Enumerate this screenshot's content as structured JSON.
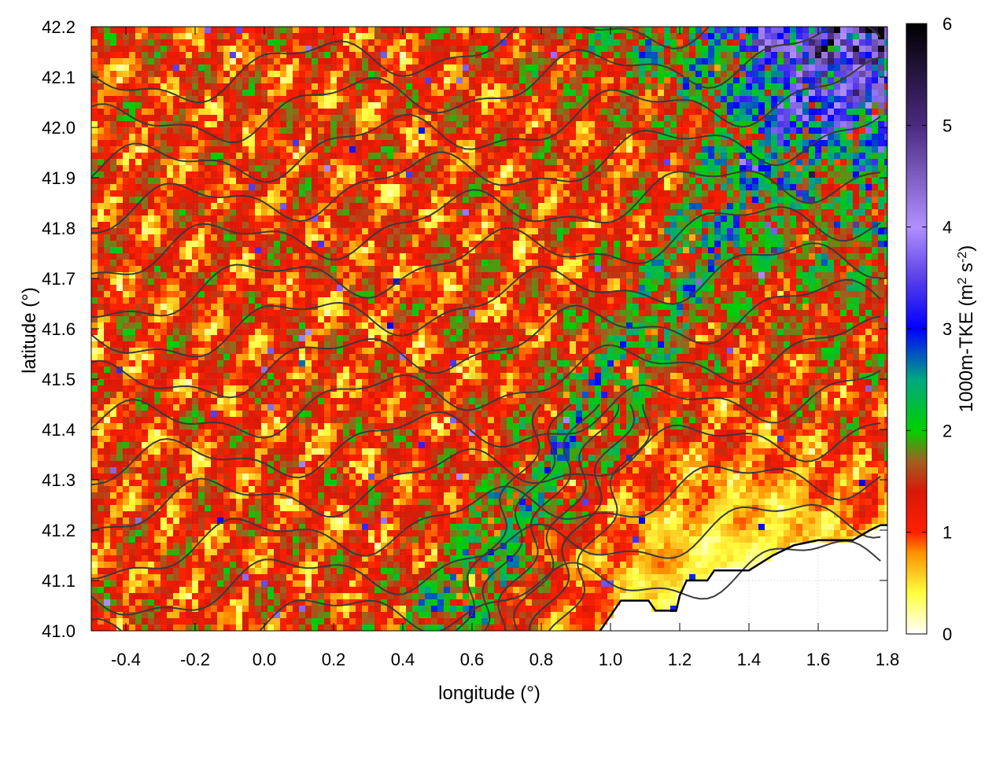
{
  "chart_data": {
    "type": "heatmap",
    "xlabel": "longitude (°)",
    "ylabel": "latitude (°)",
    "colorbar_label_main": "1000m-TKE (m",
    "colorbar_label_sup1": "2",
    "colorbar_label_mid": " s",
    "colorbar_label_sup2": "-2",
    "colorbar_label_end": ")",
    "xlim": [
      -0.5,
      1.8
    ],
    "ylim": [
      41.0,
      42.2
    ],
    "x_ticks": [
      -0.4,
      -0.2,
      0.0,
      0.2,
      0.4,
      0.6,
      0.8,
      1.0,
      1.2,
      1.4,
      1.6,
      1.8
    ],
    "x_tick_labels": [
      "-0.4",
      "-0.2",
      "0.0",
      "0.2",
      "0.4",
      "0.6",
      "0.8",
      "1.0",
      "1.2",
      "1.4",
      "1.6",
      "1.8"
    ],
    "y_ticks": [
      41.0,
      41.1,
      41.2,
      41.3,
      41.4,
      41.5,
      41.6,
      41.7,
      41.8,
      41.9,
      42.0,
      42.1,
      42.2
    ],
    "y_tick_labels": [
      "41.0",
      "41.1",
      "41.2",
      "41.3",
      "41.4",
      "41.5",
      "41.6",
      "41.7",
      "41.8",
      "41.9",
      "42.0",
      "42.1",
      "42.2"
    ],
    "colorbar_range": [
      0,
      6
    ],
    "colorbar_ticks": [
      0,
      1,
      2,
      3,
      4,
      5,
      6
    ],
    "colorbar_tick_labels": [
      "0",
      "1",
      "2",
      "3",
      "4",
      "5",
      "6"
    ],
    "colormap": [
      {
        "value": 0.0,
        "color": "#ffffff"
      },
      {
        "value": 0.4,
        "color": "#ffff40"
      },
      {
        "value": 0.8,
        "color": "#ff9000"
      },
      {
        "value": 1.0,
        "color": "#ff2000"
      },
      {
        "value": 1.4,
        "color": "#d81808"
      },
      {
        "value": 1.7,
        "color": "#a06020"
      },
      {
        "value": 2.0,
        "color": "#00d000"
      },
      {
        "value": 2.5,
        "color": "#00a880"
      },
      {
        "value": 3.0,
        "color": "#0000ff"
      },
      {
        "value": 3.5,
        "color": "#5a40e8"
      },
      {
        "value": 4.0,
        "color": "#b090ff"
      },
      {
        "value": 5.0,
        "color": "#4a2a80"
      },
      {
        "value": 6.0,
        "color": "#000000"
      }
    ],
    "coastline": [
      [
        0.97,
        41.0
      ],
      [
        1.03,
        41.06
      ],
      [
        1.11,
        41.06
      ],
      [
        1.13,
        41.04
      ],
      [
        1.19,
        41.04
      ],
      [
        1.2,
        41.07
      ],
      [
        1.22,
        41.1
      ],
      [
        1.28,
        41.1
      ],
      [
        1.3,
        41.12
      ],
      [
        1.4,
        41.12
      ],
      [
        1.47,
        41.15
      ],
      [
        1.53,
        41.17
      ],
      [
        1.6,
        41.18
      ],
      [
        1.7,
        41.18
      ],
      [
        1.75,
        41.2
      ],
      [
        1.78,
        41.21
      ],
      [
        1.8,
        41.21
      ]
    ],
    "contour_color": "#3a3a3a",
    "grid": true
  }
}
